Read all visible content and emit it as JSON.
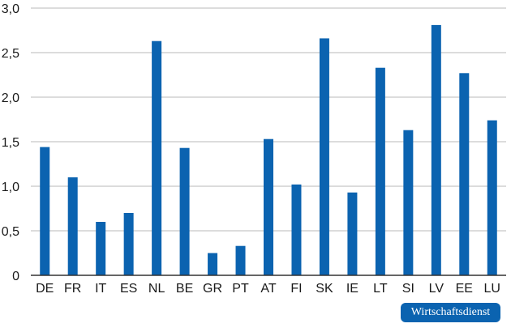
{
  "chart_data": {
    "type": "bar",
    "categories": [
      "DE",
      "FR",
      "IT",
      "ES",
      "NL",
      "BE",
      "GR",
      "PT",
      "AT",
      "FI",
      "SK",
      "IE",
      "LT",
      "SI",
      "LV",
      "EE",
      "LU"
    ],
    "values": [
      1.44,
      1.1,
      0.6,
      0.7,
      2.63,
      1.43,
      0.25,
      0.33,
      1.53,
      1.02,
      2.66,
      0.93,
      2.33,
      1.63,
      2.81,
      2.27,
      1.74
    ],
    "yticks": [
      "0",
      "0,5",
      "1,0",
      "1,5",
      "2,0",
      "2,5",
      "3,0"
    ],
    "ylim": [
      0,
      3
    ],
    "grid": true,
    "bar_color": "#0b63b0"
  },
  "badge": {
    "text": "Wirtschaftsdienst"
  },
  "colors": {
    "bar": "#0b63b0",
    "grid": "#b9b9b9",
    "axis": "#333333",
    "badge": "#0b63b0"
  }
}
